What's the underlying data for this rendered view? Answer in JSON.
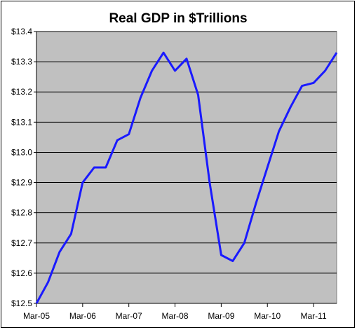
{
  "chart_data": {
    "type": "line",
    "title": "Real GDP in $Trillions",
    "xlabel": "",
    "ylabel": "",
    "ylim": [
      12.5,
      13.4
    ],
    "y_tick_labels": [
      "$12.5",
      "$12.6",
      "$12.7",
      "$12.8",
      "$12.9",
      "$13.0",
      "$13.1",
      "$13.2",
      "$13.3",
      "$13.4"
    ],
    "x_tick_labels": [
      "Mar-05",
      "Mar-06",
      "Mar-07",
      "Mar-08",
      "Mar-09",
      "Mar-10",
      "Mar-11"
    ],
    "grid": "horizontal",
    "line_color": "#1a1aff",
    "plot_bg": "#c0c0c0",
    "series": [
      {
        "x": [
          "Mar-05",
          "Jun-05",
          "Sep-05",
          "Dec-05",
          "Mar-06",
          "Jun-06",
          "Sep-06",
          "Dec-06",
          "Mar-07",
          "Jun-07",
          "Sep-07",
          "Dec-07",
          "Mar-08",
          "Jun-08",
          "Sep-08",
          "Dec-08",
          "Mar-09",
          "Jun-09",
          "Sep-09",
          "Dec-09",
          "Mar-10",
          "Jun-10",
          "Sep-10",
          "Dec-10",
          "Mar-11",
          "Jun-11",
          "Sep-11"
        ],
        "values": [
          12.5,
          12.57,
          12.67,
          12.73,
          12.9,
          12.95,
          12.95,
          13.04,
          13.06,
          13.18,
          13.27,
          13.33,
          13.27,
          13.31,
          13.19,
          12.9,
          12.66,
          12.64,
          12.7,
          12.83,
          12.95,
          13.07,
          13.15,
          13.22,
          13.23,
          13.27,
          13.33
        ]
      }
    ]
  }
}
